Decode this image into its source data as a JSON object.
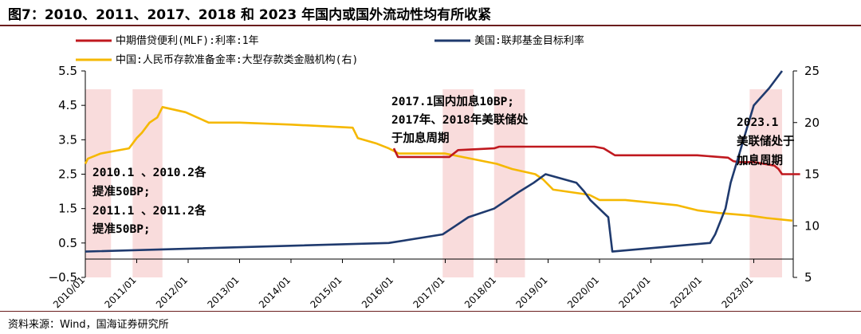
{
  "title": "图7：2010、2011、2017、2018 和 2023 年国内或国外流动性均有所收紧",
  "source": "资料来源：Wind，国海证券研究所",
  "chart_data": {
    "type": "line",
    "y_left": {
      "range": [
        -0.5,
        5.5
      ],
      "ticks": [
        "5.5",
        "4.5",
        "3.5",
        "2.5",
        "1.5",
        "0.5",
        "−0.5"
      ]
    },
    "y_right": {
      "range": [
        5,
        25
      ],
      "ticks": [
        "25",
        "20",
        "15",
        "10",
        "5"
      ]
    },
    "x_ticks": [
      "2010/01",
      "2011/01",
      "2012/01",
      "2013/01",
      "2014/01",
      "2015/01",
      "2016/01",
      "2017/01",
      "2018/01",
      "2019/01",
      "2020/01",
      "2021/01",
      "2022/01",
      "2023/01"
    ],
    "grid": false,
    "legend_position": "top",
    "series": [
      {
        "name": "中期借贷便利(MLF):利率:1年",
        "axis": "left",
        "color": "#c0191f",
        "x": [
          2016.0,
          2016.08,
          2017.08,
          2017.25,
          2017.95,
          2018.05,
          2019.0,
          2019.9,
          2020.08,
          2020.3,
          2021.9,
          2022.5,
          2022.6,
          2022.7,
          2023.0,
          2023.4,
          2023.48,
          2023.55,
          2023.9
        ],
        "y": [
          3.25,
          3.0,
          3.0,
          3.2,
          3.25,
          3.3,
          3.3,
          3.3,
          3.25,
          3.05,
          3.05,
          2.98,
          2.88,
          2.85,
          2.85,
          2.75,
          2.65,
          2.5,
          2.5
        ]
      },
      {
        "name": "美国:联邦基金目标利率",
        "axis": "left",
        "color": "#1f3a6e",
        "x": [
          2010.0,
          2015.9,
          2016.95,
          2017.2,
          2017.45,
          2017.95,
          2018.2,
          2018.45,
          2018.72,
          2018.95,
          2019.55,
          2019.7,
          2019.82,
          2020.17,
          2020.25,
          2022.15,
          2022.25,
          2022.45,
          2022.55,
          2022.7,
          2022.85,
          2023.0,
          2023.3,
          2023.55
        ],
        "y": [
          0.25,
          0.5,
          0.75,
          1.0,
          1.25,
          1.5,
          1.75,
          2.0,
          2.25,
          2.5,
          2.25,
          2.0,
          1.75,
          1.25,
          0.25,
          0.5,
          0.75,
          1.5,
          2.25,
          3.0,
          3.75,
          4.5,
          5.0,
          5.5
        ]
      },
      {
        "name": "中国:人民币存款准备金率:大型存款类金融机构(右)",
        "axis": "right",
        "color": "#f5b800",
        "x": [
          2010.0,
          2010.05,
          2010.3,
          2010.85,
          2011.0,
          2011.1,
          2011.25,
          2011.4,
          2011.5,
          2011.95,
          2012.4,
          2013.0,
          2014.0,
          2015.2,
          2015.3,
          2015.65,
          2015.9,
          2016.1,
          2016.9,
          2017.0,
          2018.0,
          2018.3,
          2018.75,
          2018.9,
          2019.1,
          2019.8,
          2020.0,
          2020.5,
          2021.5,
          2021.9,
          2022.3,
          2022.9,
          2023.25,
          2023.75
        ],
        "y": [
          16.0,
          16.5,
          17.0,
          17.5,
          18.5,
          19.0,
          20.0,
          20.5,
          21.5,
          21.0,
          20.0,
          20.0,
          19.8,
          19.5,
          18.5,
          18.0,
          17.5,
          17.0,
          17.0,
          17.0,
          16.0,
          15.5,
          15.0,
          14.5,
          13.5,
          13.0,
          12.5,
          12.5,
          12.0,
          11.5,
          11.25,
          11.0,
          10.75,
          10.5
        ]
      }
    ],
    "shaded_periods": [
      [
        2010.0,
        2010.5
      ],
      [
        2010.92,
        2011.5
      ],
      [
        2016.95,
        2017.55
      ],
      [
        2017.95,
        2018.55
      ],
      [
        2022.92,
        2023.55
      ]
    ],
    "annotations": {
      "a1": [
        "2010.1 、2010.2各",
        "提准50BP;",
        "2011.1 、2011.2各",
        "提准50BP;"
      ],
      "a2": [
        "2017.1国内加息10BP;",
        "2017年、2018年美联储处",
        "于加息周期"
      ],
      "a3": [
        "2023.1",
        "美联储处于",
        "加息周期"
      ]
    }
  }
}
